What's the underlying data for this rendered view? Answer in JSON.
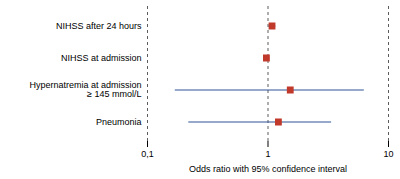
{
  "chart_data": {
    "type": "forest",
    "categories": [
      "NIHSS after 24 hours",
      "NIHSS at admission",
      "Hypernatremia at admission\n≥ 145 mmol/L",
      "Pneumonia"
    ],
    "values": [
      1.08,
      0.97,
      1.53,
      1.22
    ],
    "ci_low": [
      1.02,
      0.94,
      0.17,
      0.22
    ],
    "ci_high": [
      1.16,
      1.0,
      6.3,
      3.37
    ],
    "xlabel": "Odds ratio with 95% confidence interval",
    "xlim": [
      0.1,
      10
    ],
    "xticks": [
      {
        "value": 0.1,
        "label": "0,1"
      },
      1,
      10
    ],
    "log": "x",
    "grid": true,
    "color": "#c0392b",
    "marker": "square"
  }
}
